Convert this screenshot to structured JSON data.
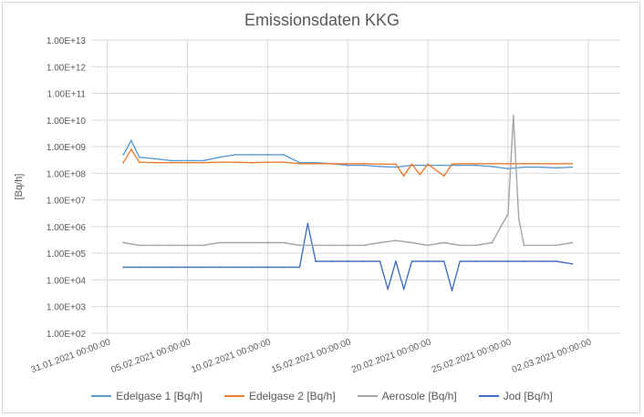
{
  "chart_data": {
    "type": "line",
    "title": "Emissionsdaten KKG",
    "xlabel": "",
    "ylabel": "[Bq/h]",
    "yscale": "log",
    "ylim": [
      100,
      10000000000000.0
    ],
    "y_ticks": [
      "1.00E+02",
      "1.00E+03",
      "1.00E+04",
      "1.00E+05",
      "1.00E+06",
      "1.00E+07",
      "1.00E+08",
      "1.00E+09",
      "1.00E+10",
      "1.00E+11",
      "1.00E+12",
      "1.00E+13"
    ],
    "xlim": [
      "2021-01-30",
      "2021-03-04"
    ],
    "x_ticks": [
      "31.01.2021 00:00:00",
      "05.02.2021 00:00:00",
      "10.02.2021 00:00:00",
      "15.02.2021 00:00:00",
      "20.02.2021 00:00:00",
      "25.02.2021 00:00:00",
      "02.03.2021 00:00:00"
    ],
    "x_tick_dates": [
      "2021-01-31",
      "2021-02-05",
      "2021-02-10",
      "2021-02-15",
      "2021-02-20",
      "2021-02-25",
      "2021-03-02"
    ],
    "grid": true,
    "legend_position": "bottom",
    "series": [
      {
        "name": "Edelgase 1 [Bq/h]",
        "color": "#5b9bd5",
        "x": [
          "2021-02-01",
          "2021-02-01 12:00",
          "2021-02-02",
          "2021-02-03",
          "2021-02-04",
          "2021-02-05",
          "2021-02-06",
          "2021-02-07",
          "2021-02-08",
          "2021-02-09",
          "2021-02-10",
          "2021-02-11",
          "2021-02-12",
          "2021-02-13",
          "2021-02-14",
          "2021-02-15",
          "2021-02-16",
          "2021-02-17",
          "2021-02-18",
          "2021-02-19",
          "2021-02-20",
          "2021-02-21",
          "2021-02-22",
          "2021-02-23",
          "2021-02-24",
          "2021-02-25",
          "2021-02-26",
          "2021-02-27",
          "2021-02-28",
          "2021-03-01"
        ],
        "values": [
          500000000.0,
          1700000000.0,
          400000000.0,
          350000000.0,
          300000000.0,
          300000000.0,
          300000000.0,
          400000000.0,
          500000000.0,
          500000000.0,
          500000000.0,
          500000000.0,
          250000000.0,
          250000000.0,
          230000000.0,
          200000000.0,
          200000000.0,
          180000000.0,
          170000000.0,
          200000000.0,
          200000000.0,
          200000000.0,
          200000000.0,
          200000000.0,
          180000000.0,
          150000000.0,
          170000000.0,
          170000000.0,
          160000000.0,
          170000000.0
        ]
      },
      {
        "name": "Edelgase 2 [Bq/h]",
        "color": "#ed7d31",
        "x": [
          "2021-02-01",
          "2021-02-01 12:00",
          "2021-02-02",
          "2021-02-03",
          "2021-02-04",
          "2021-02-05",
          "2021-02-06",
          "2021-02-07",
          "2021-02-08",
          "2021-02-09",
          "2021-02-10",
          "2021-02-11",
          "2021-02-12",
          "2021-02-13",
          "2021-02-14",
          "2021-02-15",
          "2021-02-16",
          "2021-02-17",
          "2021-02-18",
          "2021-02-18 12:00",
          "2021-02-19",
          "2021-02-19 12:00",
          "2021-02-20",
          "2021-02-21",
          "2021-02-21 12:00",
          "2021-02-22",
          "2021-02-23",
          "2021-02-24",
          "2021-02-25",
          "2021-02-26",
          "2021-02-27",
          "2021-02-28",
          "2021-03-01"
        ],
        "values": [
          250000000.0,
          800000000.0,
          260000000.0,
          250000000.0,
          250000000.0,
          250000000.0,
          250000000.0,
          260000000.0,
          260000000.0,
          250000000.0,
          260000000.0,
          260000000.0,
          230000000.0,
          230000000.0,
          230000000.0,
          230000000.0,
          230000000.0,
          220000000.0,
          220000000.0,
          80000000.0,
          220000000.0,
          90000000.0,
          220000000.0,
          80000000.0,
          220000000.0,
          230000000.0,
          230000000.0,
          230000000.0,
          230000000.0,
          230000000.0,
          230000000.0,
          230000000.0,
          230000000.0
        ]
      },
      {
        "name": "Aerosole [Bq/h]",
        "color": "#a5a5a5",
        "x": [
          "2021-02-01",
          "2021-02-02",
          "2021-02-03",
          "2021-02-04",
          "2021-02-05",
          "2021-02-06",
          "2021-02-07",
          "2021-02-08",
          "2021-02-09",
          "2021-02-10",
          "2021-02-11",
          "2021-02-12",
          "2021-02-13",
          "2021-02-14",
          "2021-02-15",
          "2021-02-16",
          "2021-02-17",
          "2021-02-18",
          "2021-02-19",
          "2021-02-20",
          "2021-02-21",
          "2021-02-22",
          "2021-02-23",
          "2021-02-24",
          "2021-02-25",
          "2021-02-25 08:00",
          "2021-02-25 16:00",
          "2021-02-26",
          "2021-02-27",
          "2021-02-28",
          "2021-03-01"
        ],
        "values": [
          250000.0,
          200000.0,
          200000.0,
          200000.0,
          200000.0,
          200000.0,
          250000.0,
          250000.0,
          250000.0,
          250000.0,
          250000.0,
          200000.0,
          200000.0,
          200000.0,
          200000.0,
          200000.0,
          250000.0,
          300000.0,
          250000.0,
          200000.0,
          250000.0,
          200000.0,
          200000.0,
          250000.0,
          3000000.0,
          15000000000.0,
          2000000.0,
          200000.0,
          200000.0,
          200000.0,
          250000.0
        ]
      },
      {
        "name": "Jod [Bq/h]",
        "color": "#4472c4",
        "x": [
          "2021-02-01",
          "2021-02-02",
          "2021-02-03",
          "2021-02-04",
          "2021-02-05",
          "2021-02-06",
          "2021-02-07",
          "2021-02-08",
          "2021-02-09",
          "2021-02-10",
          "2021-02-11",
          "2021-02-12",
          "2021-02-12 12:00",
          "2021-02-13",
          "2021-02-14",
          "2021-02-15",
          "2021-02-16",
          "2021-02-17",
          "2021-02-17 12:00",
          "2021-02-18",
          "2021-02-18 12:00",
          "2021-02-19",
          "2021-02-20",
          "2021-02-21",
          "2021-02-21 12:00",
          "2021-02-22",
          "2021-02-23",
          "2021-02-24",
          "2021-02-25",
          "2021-02-26",
          "2021-02-27",
          "2021-02-28",
          "2021-03-01"
        ],
        "values": [
          30000.0,
          30000.0,
          30000.0,
          30000.0,
          30000.0,
          30000.0,
          30000.0,
          30000.0,
          30000.0,
          30000.0,
          30000.0,
          30000.0,
          1300000.0,
          50000.0,
          50000.0,
          50000.0,
          50000.0,
          50000.0,
          4500.0,
          50000.0,
          4500.0,
          50000.0,
          50000.0,
          50000.0,
          4000.0,
          50000.0,
          50000.0,
          50000.0,
          50000.0,
          50000.0,
          50000.0,
          50000.0,
          40000.0
        ]
      }
    ]
  }
}
